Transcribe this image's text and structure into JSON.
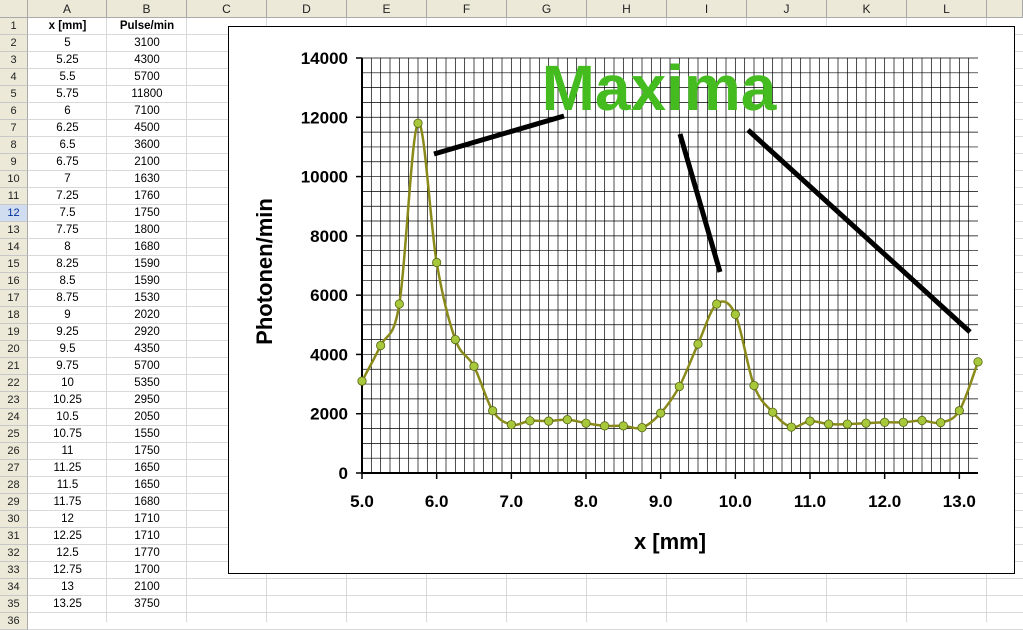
{
  "sheet": {
    "columns": [
      "A",
      "B",
      "C",
      "D",
      "E",
      "F",
      "G",
      "H",
      "I",
      "J",
      "K",
      "L"
    ],
    "rows": [
      "1",
      "2",
      "3",
      "4",
      "5",
      "6",
      "7",
      "8",
      "9",
      "10",
      "11",
      "12",
      "13",
      "14",
      "15",
      "16",
      "17",
      "18",
      "19",
      "20",
      "21",
      "22",
      "23",
      "24",
      "25",
      "26",
      "27",
      "28",
      "29",
      "30",
      "31",
      "32",
      "33",
      "34",
      "35",
      "36"
    ],
    "selected_row": "12",
    "header_a": "x [mm]",
    "header_b": "Pulse/min",
    "col_a": [
      "5",
      "5.25",
      "5.5",
      "5.75",
      "6",
      "6.25",
      "6.5",
      "6.75",
      "7",
      "7.25",
      "7.5",
      "7.75",
      "8",
      "8.25",
      "8.5",
      "8.75",
      "9",
      "9.25",
      "9.5",
      "9.75",
      "10",
      "10.25",
      "10.5",
      "10.75",
      "11",
      "11.25",
      "11.5",
      "11.75",
      "12",
      "12.25",
      "12.5",
      "12.75",
      "13",
      "13.25"
    ],
    "col_b": [
      "3100",
      "4300",
      "5700",
      "11800",
      "7100",
      "4500",
      "3600",
      "2100",
      "1630",
      "1760",
      "1750",
      "1800",
      "1680",
      "1590",
      "1590",
      "1530",
      "2020",
      "2920",
      "4350",
      "5700",
      "5350",
      "2950",
      "2050",
      "1550",
      "1750",
      "1650",
      "1650",
      "1680",
      "1710",
      "1710",
      "1770",
      "1700",
      "2100",
      "3750"
    ]
  },
  "chart_data": {
    "type": "line",
    "title": "",
    "xlabel": "x [mm]",
    "ylabel": "Photonen/min",
    "xlim": [
      5.0,
      13.25
    ],
    "ylim": [
      0,
      14000
    ],
    "x_ticks": [
      "5.0",
      "6.0",
      "7.0",
      "8.0",
      "9.0",
      "10.0",
      "11.0",
      "12.0",
      "13.0"
    ],
    "y_ticks": [
      "0",
      "2000",
      "4000",
      "6000",
      "8000",
      "10000",
      "12000",
      "14000"
    ],
    "grid": true,
    "annotation": "Maxima",
    "colors": {
      "line": "#8a8a1a",
      "marker": "#a8c83c",
      "annotation": "#44bb1f"
    },
    "x": [
      5,
      5.25,
      5.5,
      5.75,
      6,
      6.25,
      6.5,
      6.75,
      7,
      7.25,
      7.5,
      7.75,
      8,
      8.25,
      8.5,
      8.75,
      9,
      9.25,
      9.5,
      9.75,
      10,
      10.25,
      10.5,
      10.75,
      11,
      11.25,
      11.5,
      11.75,
      12,
      12.25,
      12.5,
      12.75,
      13,
      13.25
    ],
    "y": [
      3100,
      4300,
      5700,
      11800,
      7100,
      4500,
      3600,
      2100,
      1630,
      1760,
      1750,
      1800,
      1680,
      1590,
      1590,
      1530,
      2020,
      2920,
      4350,
      5700,
      5350,
      2950,
      2050,
      1550,
      1750,
      1650,
      1650,
      1680,
      1710,
      1710,
      1770,
      1700,
      2100,
      3750
    ]
  }
}
